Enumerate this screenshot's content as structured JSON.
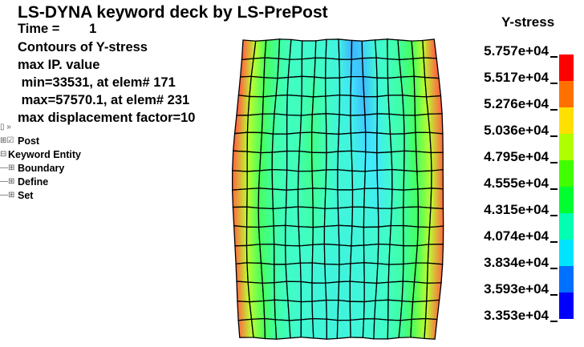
{
  "header": {
    "title": "LS-DYNA keyword deck by LS-PrePost",
    "lines": [
      "Time =        1",
      "Contours of Y-stress",
      "max IP. value",
      " min=33531, at elem# 171",
      " max=57570.1, at elem# 231",
      "max displacement factor=10"
    ]
  },
  "tree": {
    "items": [
      {
        "label": "Post",
        "icon": "checkbox-checked-icon"
      },
      {
        "label": "Keyword Entity",
        "icon": "expand-icon"
      },
      {
        "label": "Boundary",
        "icon": "expand-icon"
      },
      {
        "label": "Define",
        "icon": "expand-icon"
      },
      {
        "label": "Set",
        "icon": "expand-icon"
      }
    ]
  },
  "legend": {
    "title": "Y-stress",
    "labels": [
      "5.757e+04",
      "5.517e+04",
      "5.276e+04",
      "5.036e+04",
      "4.795e+04",
      "4.555e+04",
      "4.315e+04",
      "4.074e+04",
      "3.834e+04",
      "3.593e+04",
      "3.353e+04"
    ],
    "colors": [
      "#ff0000",
      "#ff7000",
      "#ffe000",
      "#b0ff00",
      "#40ff00",
      "#00ff30",
      "#00ffb0",
      "#00e5ff",
      "#0070ff",
      "#0000ff"
    ]
  }
}
